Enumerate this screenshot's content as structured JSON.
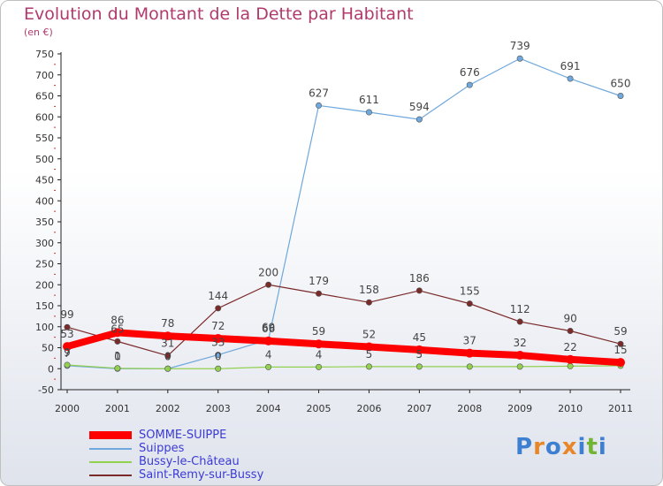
{
  "title": "Evolution du Montant de la Dette par Habitant",
  "unit": "(en €)",
  "logo": "Proxiti",
  "chart_data": {
    "type": "line",
    "title": "Evolution du Montant de la Dette par Habitant",
    "ylabel": "(en €)",
    "ylim": [
      -50,
      750
    ],
    "yticks": [
      -50,
      0,
      50,
      100,
      150,
      200,
      250,
      300,
      350,
      400,
      450,
      500,
      550,
      600,
      650,
      700,
      750
    ],
    "categories": [
      "2000",
      "2001",
      "2002",
      "2003",
      "2004",
      "2005",
      "2006",
      "2007",
      "2008",
      "2009",
      "2010",
      "2011"
    ],
    "grid": false,
    "legend_position": "bottom-left",
    "series": [
      {
        "name": "SOMME-SUIPPE",
        "color": "#ff0000",
        "values": [
          53,
          86,
          78,
          72,
          66,
          59,
          52,
          45,
          37,
          32,
          22,
          15
        ],
        "labels": [
          "53",
          "86",
          "78",
          "72",
          "66",
          "59",
          "52",
          "45",
          "37",
          "32",
          "22",
          "15"
        ]
      },
      {
        "name": "Suippes",
        "color": "#6fa8dc",
        "values": [
          7,
          0,
          0,
          33,
          69,
          627,
          611,
          594,
          676,
          739,
          691,
          650
        ],
        "labels": [
          "7",
          "0",
          "0",
          "33",
          "69",
          "627",
          "611",
          "594",
          "676",
          "739",
          "691",
          "650"
        ]
      },
      {
        "name": "Bussy-le-Château",
        "color": "#92d050",
        "values": [
          9,
          1,
          0,
          0,
          4,
          4,
          5,
          5,
          5,
          5,
          6,
          7
        ],
        "labels": [
          "9",
          "1",
          "0",
          "0",
          "4",
          "4",
          "5",
          "5",
          "",
          "",
          "",
          ""
        ]
      },
      {
        "name": "Saint-Remy-sur-Bussy",
        "color": "#7b2a2a",
        "values": [
          99,
          65,
          31,
          144,
          200,
          179,
          158,
          186,
          155,
          112,
          90,
          59
        ],
        "labels": [
          "99",
          "65",
          "31",
          "144",
          "200",
          "179",
          "158",
          "186",
          "155",
          "112",
          "90",
          "59"
        ]
      }
    ]
  }
}
